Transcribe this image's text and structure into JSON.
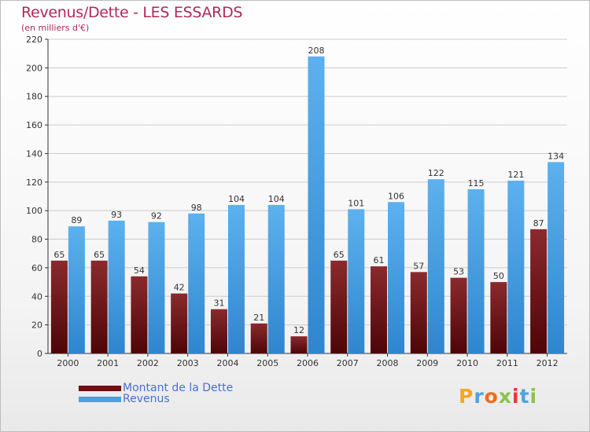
{
  "header": {
    "title": "Revenus/Dette - LES ESSARDS",
    "subtitle": "(en milliers d'€)"
  },
  "legend": [
    {
      "label": "Montant de la Dette",
      "color": "#6b0f12"
    },
    {
      "label": "Revenus",
      "color": "#4aa0e2"
    }
  ],
  "logo": {
    "text": "Proxiti",
    "colors": [
      "#f5a623",
      "#4fa3e0",
      "#ef6c1a",
      "#8bc34a",
      "#e53935",
      "#4fa3e0",
      "#8bc34a"
    ]
  },
  "colors": {
    "dette": "#7a1a1d",
    "revenus": "#4fa6e6",
    "grid": "#cccccc",
    "axis": "#333333"
  },
  "chart_data": {
    "type": "bar",
    "title": "Revenus/Dette - LES ESSARDS",
    "subtitle": "(en milliers d'€)",
    "xlabel": "",
    "ylabel": "",
    "ylim": [
      0,
      220
    ],
    "yticks": [
      0,
      20,
      40,
      60,
      80,
      100,
      120,
      140,
      160,
      180,
      200,
      220
    ],
    "grid": true,
    "legend_position": "bottom-left",
    "categories": [
      "2000",
      "2001",
      "2002",
      "2003",
      "2004",
      "2005",
      "2006",
      "2007",
      "2008",
      "2009",
      "2010",
      "2011",
      "2012"
    ],
    "series": [
      {
        "name": "Montant de la Dette",
        "values": [
          65,
          65,
          54,
          42,
          31,
          21,
          12,
          65,
          61,
          57,
          53,
          50,
          87
        ]
      },
      {
        "name": "Revenus",
        "values": [
          89,
          93,
          92,
          98,
          104,
          104,
          208,
          101,
          106,
          122,
          115,
          121,
          134
        ]
      }
    ]
  }
}
